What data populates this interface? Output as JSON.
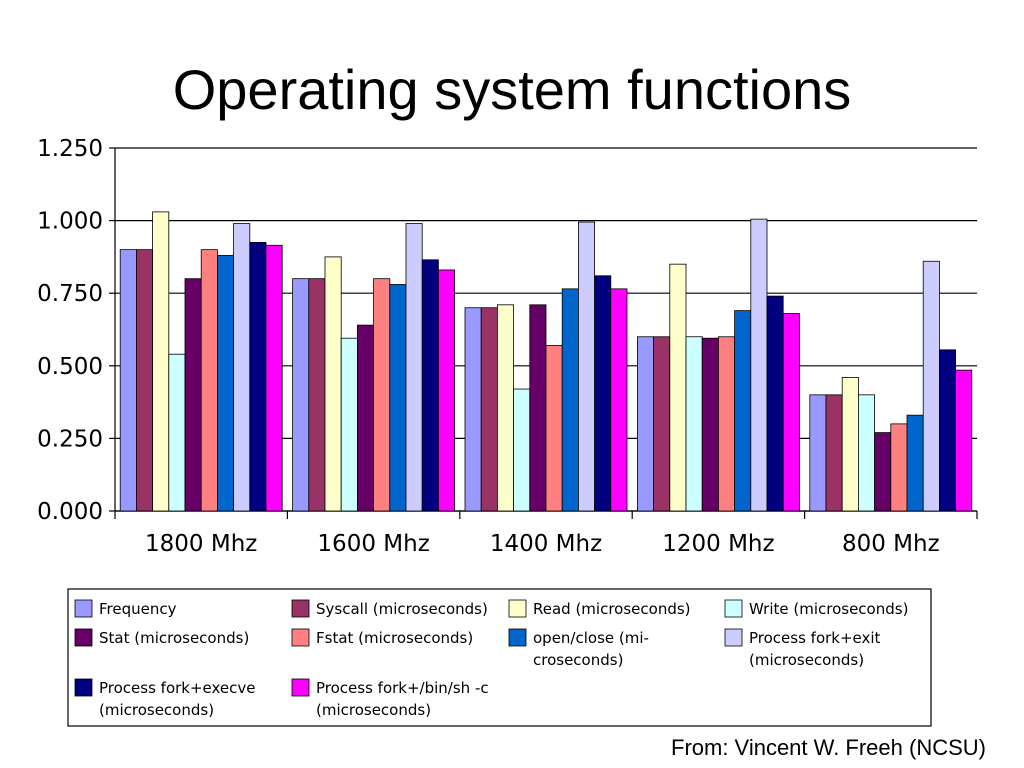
{
  "slide": {
    "title": "Operating system functions",
    "source": "From: Vincent W. Freeh (NCSU)"
  },
  "chart_data": {
    "type": "bar",
    "title": "",
    "xlabel": "",
    "ylabel": "",
    "ylim": [
      0,
      1.25
    ],
    "yticks": [
      "0.000",
      "0.250",
      "0.500",
      "0.750",
      "1.000",
      "1.250"
    ],
    "grid": true,
    "legend_position": "bottom",
    "categories": [
      "1800 Mhz",
      "1600 Mhz",
      "1400 Mhz",
      "1200 Mhz",
      "800 Mhz"
    ],
    "series": [
      {
        "name": "Frequency",
        "color": "#9999ff",
        "values": [
          0.9,
          0.8,
          0.7,
          0.6,
          0.4
        ]
      },
      {
        "name": "Syscall (microseconds)",
        "color": "#993366",
        "values": [
          0.9,
          0.8,
          0.7,
          0.6,
          0.4
        ]
      },
      {
        "name": "Read (microseconds)",
        "color": "#ffffcc",
        "values": [
          1.03,
          0.875,
          0.71,
          0.85,
          0.46
        ]
      },
      {
        "name": "Write (microseconds)",
        "color": "#ccffff",
        "values": [
          0.54,
          0.595,
          0.42,
          0.6,
          0.4
        ]
      },
      {
        "name": "Stat (microseconds)",
        "color": "#660066",
        "values": [
          0.8,
          0.64,
          0.71,
          0.595,
          0.27
        ]
      },
      {
        "name": "Fstat (microseconds)",
        "color": "#ff8080",
        "values": [
          0.9,
          0.8,
          0.57,
          0.6,
          0.3
        ]
      },
      {
        "name": "open/close (mi- croseconds)",
        "color": "#0066cc",
        "values": [
          0.88,
          0.78,
          0.765,
          0.69,
          0.33
        ]
      },
      {
        "name": "Process fork+exit (microseconds)",
        "color": "#ccccff",
        "values": [
          0.99,
          0.99,
          0.995,
          1.005,
          0.86
        ]
      },
      {
        "name": "Process fork+execve (microseconds)",
        "color": "#000080",
        "values": [
          0.925,
          0.865,
          0.81,
          0.74,
          0.555
        ]
      },
      {
        "name": "Process fork+/bin/sh -c (microseconds)",
        "color": "#ff00ff",
        "values": [
          0.915,
          0.83,
          0.765,
          0.68,
          0.485
        ]
      }
    ]
  },
  "legend_lines": [
    [
      "Frequency"
    ],
    [
      "Syscall (microseconds)"
    ],
    [
      "Read (microseconds)"
    ],
    [
      "Write (microseconds)"
    ],
    [
      "Stat (microseconds)"
    ],
    [
      "Fstat (microseconds)"
    ],
    [
      "open/close (mi-",
      "croseconds)"
    ],
    [
      "Process fork+exit",
      "(microseconds)"
    ],
    [
      "Process fork+execve",
      "(microseconds)"
    ],
    [
      "Process fork+/bin/sh -c",
      "(microseconds)"
    ]
  ]
}
